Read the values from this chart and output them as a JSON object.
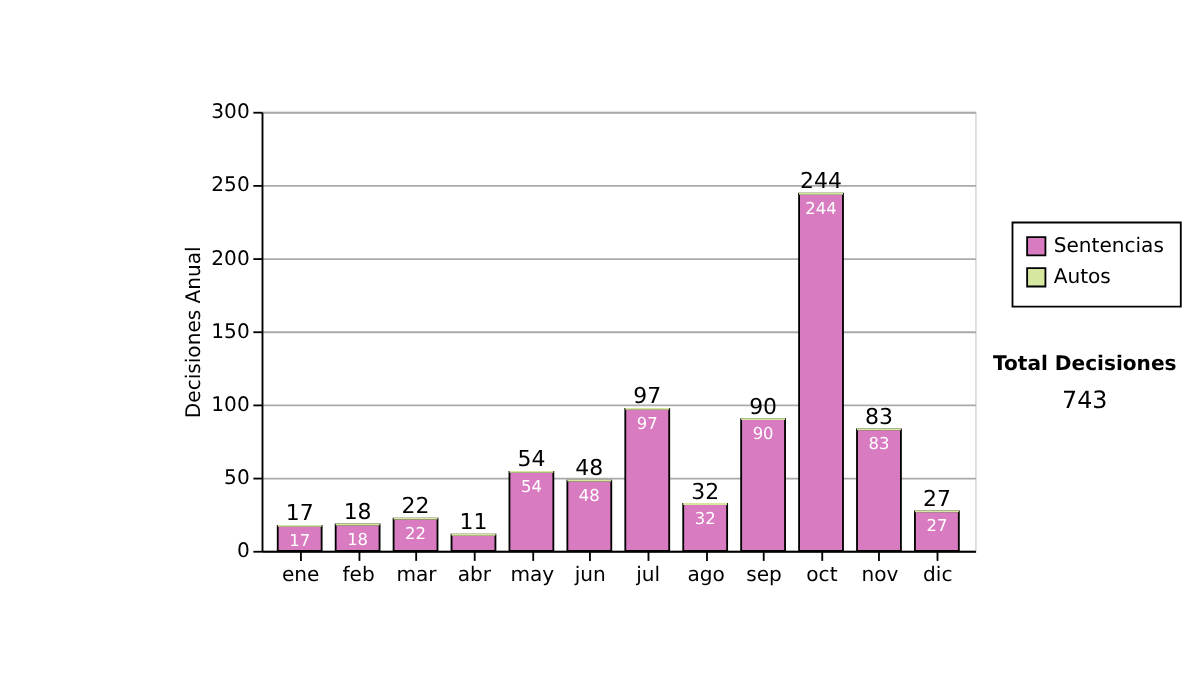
{
  "chart_data": {
    "type": "bar",
    "ylabel": "Decisiones Anual",
    "categories": [
      "ene",
      "feb",
      "mar",
      "abr",
      "may",
      "jun",
      "jul",
      "ago",
      "sep",
      "oct",
      "nov",
      "dic"
    ],
    "series": [
      {
        "name": "Sentencias",
        "color": "#d97bc0",
        "values": [
          17,
          18,
          22,
          11,
          54,
          48,
          97,
          32,
          90,
          244,
          83,
          27
        ],
        "value_labels": [
          "17",
          "18",
          "22",
          null,
          "54",
          "48",
          "97",
          "32",
          "90",
          "244",
          "83",
          "27"
        ]
      },
      {
        "name": "Autos",
        "color": "#d6e8a0",
        "values": [
          0,
          0,
          0,
          0,
          0,
          0,
          0,
          0,
          0,
          0,
          0,
          0
        ]
      }
    ],
    "stacked": true,
    "totals": [
      "17",
      "18",
      "22",
      "11",
      "54",
      "48",
      "97",
      "32",
      "90",
      "244",
      "83",
      "27"
    ],
    "ylim": [
      0,
      300
    ],
    "yticks": [
      0,
      50,
      100,
      150,
      200,
      250,
      300
    ],
    "grid": "y",
    "legend": "right",
    "annotations": [
      "Total Decisiones",
      "743"
    ]
  }
}
